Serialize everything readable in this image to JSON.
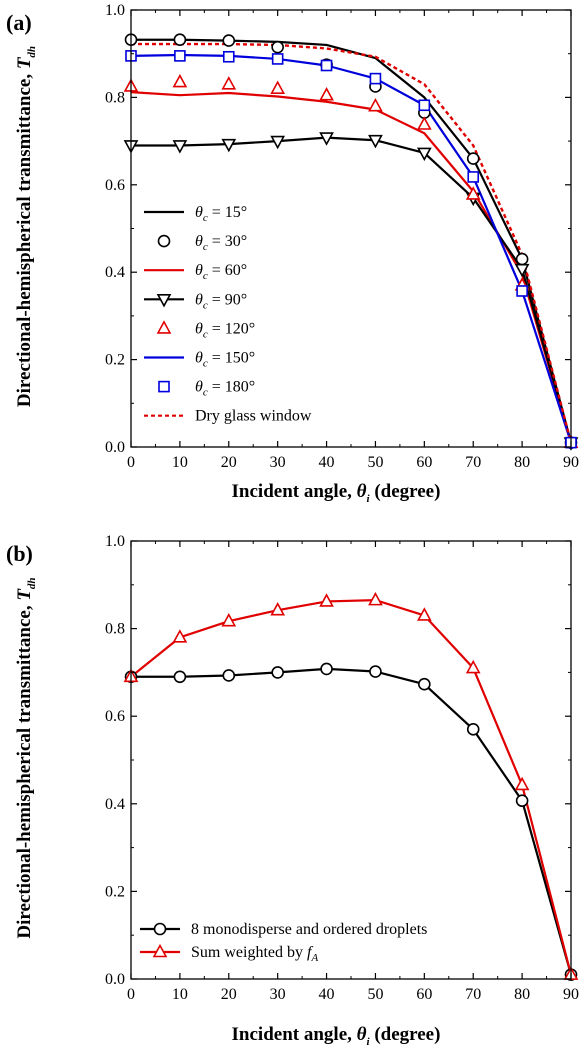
{
  "chart_data": [
    {
      "type": "line",
      "panel_label": "(a)",
      "xlabel": {
        "main": "Incident angle, ",
        "symbol": "θ",
        "sub": "i",
        "tail": " (degree)"
      },
      "ylabel": {
        "main": "Directional-hemispherical transmittance, ",
        "symbol": "T",
        "sub": "dh"
      },
      "xlim": [
        0,
        90
      ],
      "ylim": [
        0.0,
        1.0
      ],
      "xticks": [
        0,
        10,
        20,
        30,
        40,
        50,
        60,
        70,
        80,
        90
      ],
      "yticks": [
        "0.0",
        "0.2",
        "0.4",
        "0.6",
        "0.8",
        "1.0"
      ],
      "grid": false,
      "legend_position": "bottom-left",
      "series": [
        {
          "name": "θc = 15°",
          "label": {
            "sym": "θ",
            "sub": "c",
            "rest": " = 15°"
          },
          "color": "#000000",
          "line": "solid",
          "marker": "none",
          "x": [
            0,
            10,
            20,
            30,
            40,
            50,
            60,
            70,
            80,
            90
          ],
          "y": [
            0.932,
            0.932,
            0.93,
            0.927,
            0.92,
            0.89,
            0.8,
            0.66,
            0.43,
            0.01
          ]
        },
        {
          "name": "θc = 30°",
          "label": {
            "sym": "θ",
            "sub": "c",
            "rest": " = 30°"
          },
          "color": "#000000",
          "line": "none",
          "marker": "circle",
          "x": [
            0,
            10,
            20,
            30,
            40,
            50,
            60,
            70,
            80,
            90
          ],
          "y": [
            0.932,
            0.932,
            0.93,
            0.915,
            0.875,
            0.825,
            0.765,
            0.66,
            0.43,
            0.01
          ]
        },
        {
          "name": "θc = 60°",
          "label": {
            "sym": "θ",
            "sub": "c",
            "rest": " = 60°"
          },
          "color": "#e00000",
          "line": "solid",
          "marker": "none",
          "x": [
            0,
            10,
            20,
            30,
            40,
            50,
            60,
            70,
            80,
            90
          ],
          "y": [
            0.812,
            0.805,
            0.81,
            0.802,
            0.79,
            0.772,
            0.718,
            0.585,
            0.395,
            0.01
          ]
        },
        {
          "name": "θc = 90°",
          "label": {
            "sym": "θ",
            "sub": "c",
            "rest": " = 90°"
          },
          "color": "#000000",
          "line": "solid",
          "marker": "triangle-down",
          "x": [
            0,
            10,
            20,
            30,
            40,
            50,
            60,
            70,
            80,
            90
          ],
          "y": [
            0.69,
            0.69,
            0.693,
            0.7,
            0.708,
            0.702,
            0.673,
            0.57,
            0.407,
            0.01
          ]
        },
        {
          "name": "θc = 120°",
          "label": {
            "sym": "θ",
            "sub": "c",
            "rest": " = 120°"
          },
          "color": "#e00000",
          "line": "none",
          "marker": "triangle-up",
          "x": [
            0,
            10,
            20,
            30,
            40,
            50,
            60,
            70,
            80,
            90
          ],
          "y": [
            0.825,
            0.835,
            0.83,
            0.82,
            0.805,
            0.78,
            0.738,
            0.578,
            0.37,
            0.01
          ]
        },
        {
          "name": "θc = 150°",
          "label": {
            "sym": "θ",
            "sub": "c",
            "rest": " = 150°"
          },
          "color": "#0000dd",
          "line": "solid",
          "marker": "none",
          "x": [
            0,
            10,
            20,
            30,
            40,
            50,
            60,
            70,
            80,
            90
          ],
          "y": [
            0.895,
            0.897,
            0.895,
            0.888,
            0.873,
            0.843,
            0.782,
            0.618,
            0.357,
            0.01
          ]
        },
        {
          "name": "θc = 180°",
          "label": {
            "sym": "θ",
            "sub": "c",
            "rest": " = 180°"
          },
          "color": "#0000dd",
          "line": "none",
          "marker": "square",
          "x": [
            0,
            10,
            20,
            30,
            40,
            50,
            60,
            70,
            80,
            90
          ],
          "y": [
            0.895,
            0.895,
            0.893,
            0.888,
            0.873,
            0.843,
            0.782,
            0.618,
            0.357,
            0.01
          ]
        },
        {
          "name": "Dry glass window",
          "label": {
            "sym": "",
            "sub": "",
            "rest": "Dry glass window"
          },
          "color": "#e00000",
          "line": "dotted",
          "marker": "none",
          "x": [
            0,
            10,
            20,
            30,
            40,
            50,
            60,
            70,
            80,
            90
          ],
          "y": [
            0.922,
            0.922,
            0.922,
            0.92,
            0.912,
            0.893,
            0.83,
            0.69,
            0.44,
            0.01
          ]
        }
      ]
    },
    {
      "type": "line",
      "panel_label": "(b)",
      "xlabel": {
        "main": "Incident angle, ",
        "symbol": "θ",
        "sub": "i",
        "tail": " (degree)"
      },
      "ylabel": {
        "main": "Directional-hemispherical transmittance, ",
        "symbol": "T",
        "sub": "dh"
      },
      "xlim": [
        0,
        90
      ],
      "ylim": [
        0.0,
        1.0
      ],
      "xticks": [
        0,
        10,
        20,
        30,
        40,
        50,
        60,
        70,
        80,
        90
      ],
      "yticks": [
        "0.0",
        "0.2",
        "0.4",
        "0.6",
        "0.8",
        "1.0"
      ],
      "grid": false,
      "legend_position": "bottom-left",
      "series": [
        {
          "name": "8 monodisperse and ordered droplets",
          "label": {
            "sym": "",
            "sub": "",
            "rest": "8 monodisperse and ordered droplets"
          },
          "color": "#000000",
          "line": "solid",
          "marker": "circle",
          "x": [
            0,
            10,
            20,
            30,
            40,
            50,
            60,
            70,
            80,
            90
          ],
          "y": [
            0.69,
            0.69,
            0.693,
            0.7,
            0.708,
            0.702,
            0.673,
            0.57,
            0.407,
            0.01
          ]
        },
        {
          "name": "Sum weighted by fA",
          "label": {
            "sym": "",
            "sub": "",
            "rest": "Sum weighted by ",
            "ital": "f",
            "ital_sub": "A"
          },
          "color": "#e00000",
          "line": "solid",
          "marker": "triangle-up",
          "x": [
            0,
            10,
            20,
            30,
            40,
            50,
            60,
            70,
            80,
            90
          ],
          "y": [
            0.69,
            0.78,
            0.817,
            0.842,
            0.862,
            0.865,
            0.83,
            0.71,
            0.443,
            0.01
          ]
        }
      ]
    }
  ]
}
